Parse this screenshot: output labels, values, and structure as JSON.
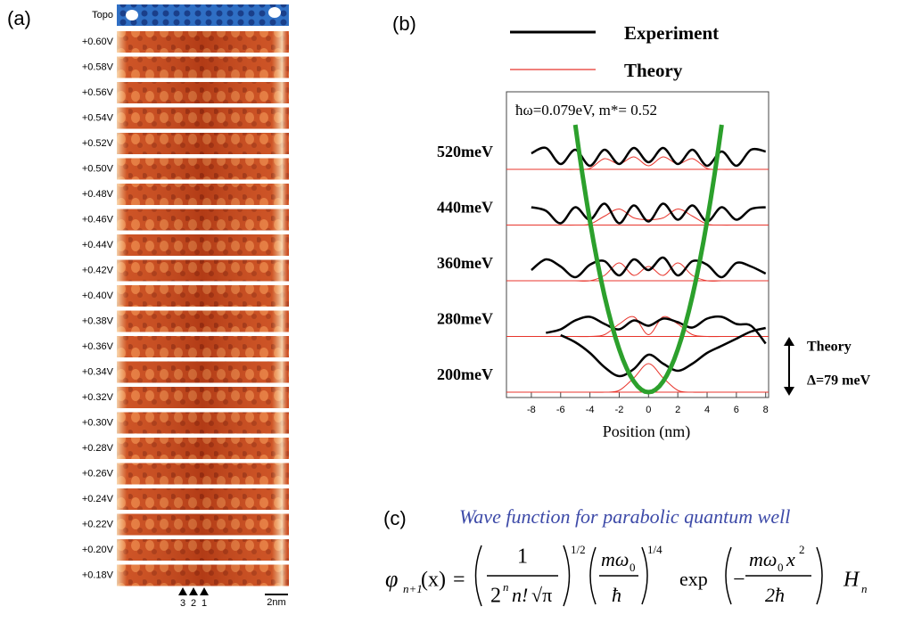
{
  "panel_a": {
    "label": "(a)",
    "topo_label": "Topo",
    "strip_labels": [
      "+0.60V",
      "+0.58V",
      "+0.56V",
      "+0.54V",
      "+0.52V",
      "+0.50V",
      "+0.48V",
      "+0.46V",
      "+0.44V",
      "+0.42V",
      "+0.40V",
      "+0.38V",
      "+0.36V",
      "+0.34V",
      "+0.32V",
      "+0.30V",
      "+0.28V",
      "+0.26V",
      "+0.24V",
      "+0.22V",
      "+0.20V",
      "+0.18V"
    ],
    "markers": [
      "3",
      "2",
      "1"
    ],
    "scale_bar": "2nm"
  },
  "chart_data": {
    "type": "line",
    "panel_label": "(b)",
    "legend": [
      {
        "name": "Experiment",
        "color": "#000000"
      },
      {
        "name": "Theory",
        "color": "#e8352c"
      }
    ],
    "annotation": "ħω=0.079eV, m*= 0.52",
    "x_label": "Position (nm)",
    "xlim": [
      -9.7,
      8.2
    ],
    "xticks": [
      -8,
      -6,
      -4,
      -2,
      0,
      2,
      4,
      6,
      8
    ],
    "x": [
      -8,
      -7,
      -6,
      -5,
      -4,
      -3,
      -2,
      -1,
      0,
      1,
      2,
      3,
      4,
      5,
      6,
      7,
      8
    ],
    "rows": [
      {
        "label": "520meV",
        "experiment": [
          0.9,
          1.2,
          0.3,
          1.1,
          0.2,
          1.1,
          0.3,
          1.2,
          0.4,
          1.2,
          0.3,
          1.1,
          0.2,
          1.0,
          0.2,
          1.1,
          1.0
        ],
        "theory": [
          0,
          0,
          0,
          0,
          0.05,
          0.6,
          0.3,
          0.7,
          0.2,
          0.7,
          0.3,
          0.6,
          0.05,
          0,
          0,
          0,
          0
        ]
      },
      {
        "label": "440meV",
        "experiment": [
          1.0,
          0.8,
          0.1,
          1.0,
          0.3,
          1.2,
          0.1,
          1.1,
          0.2,
          1.2,
          0.3,
          1.1,
          0.2,
          1.0,
          0.3,
          0.9,
          1.0
        ],
        "theory": [
          0,
          0,
          0,
          0,
          0.05,
          0.5,
          0.9,
          0.4,
          0.3,
          0.4,
          0.9,
          0.5,
          0.05,
          0,
          0,
          0,
          0
        ]
      },
      {
        "label": "360meV",
        "experiment": [
          0.6,
          1.2,
          0.8,
          0.2,
          0.9,
          1.1,
          0.3,
          1.2,
          0.6,
          1.3,
          0.3,
          1.1,
          0.9,
          0.2,
          1.0,
          0.8,
          0.4
        ],
        "theory": [
          0,
          0,
          0,
          0,
          0,
          0.3,
          1.0,
          0.3,
          0.8,
          0.3,
          1.0,
          0.3,
          0,
          0,
          0,
          0,
          0
        ]
      },
      {
        "label": "280meV",
        "experiment": [
          null,
          0.2,
          0.4,
          0.9,
          1.1,
          0.7,
          0.4,
          0.9,
          0.6,
          1.0,
          0.8,
          0.5,
          1.0,
          1.1,
          0.7,
          0.6,
          -0.4
        ],
        "theory": [
          0,
          0,
          0,
          0,
          0,
          0.1,
          0.7,
          1.1,
          0.1,
          1.1,
          0.7,
          0.1,
          0,
          0,
          0,
          0,
          0
        ]
      },
      {
        "label": "200meV",
        "experiment": [
          null,
          null,
          3.2,
          2.8,
          2.2,
          1.4,
          0.9,
          1.3,
          2.1,
          1.6,
          1.2,
          1.6,
          2.2,
          2.6,
          3.0,
          3.4,
          3.6
        ],
        "theory": [
          0,
          0,
          0,
          0,
          0,
          0,
          0.1,
          0.8,
          1.6,
          0.8,
          0.1,
          0,
          0,
          0,
          0,
          0,
          0
        ]
      }
    ],
    "bracket_labels": [
      "Theory",
      "Δ=79 meV"
    ]
  },
  "panel_c": {
    "label": "(c)",
    "caption": "Wave function for parabolic quantum well",
    "formula": [
      "φ",
      "n+1",
      "(x)",
      "=",
      "1",
      "2",
      "n",
      "n!",
      "√π",
      "1/2",
      "mω",
      "0",
      "ħ",
      "1/4",
      "exp",
      "−",
      "mω",
      "0",
      "x",
      "2",
      "2ħ",
      "H",
      "n"
    ]
  }
}
